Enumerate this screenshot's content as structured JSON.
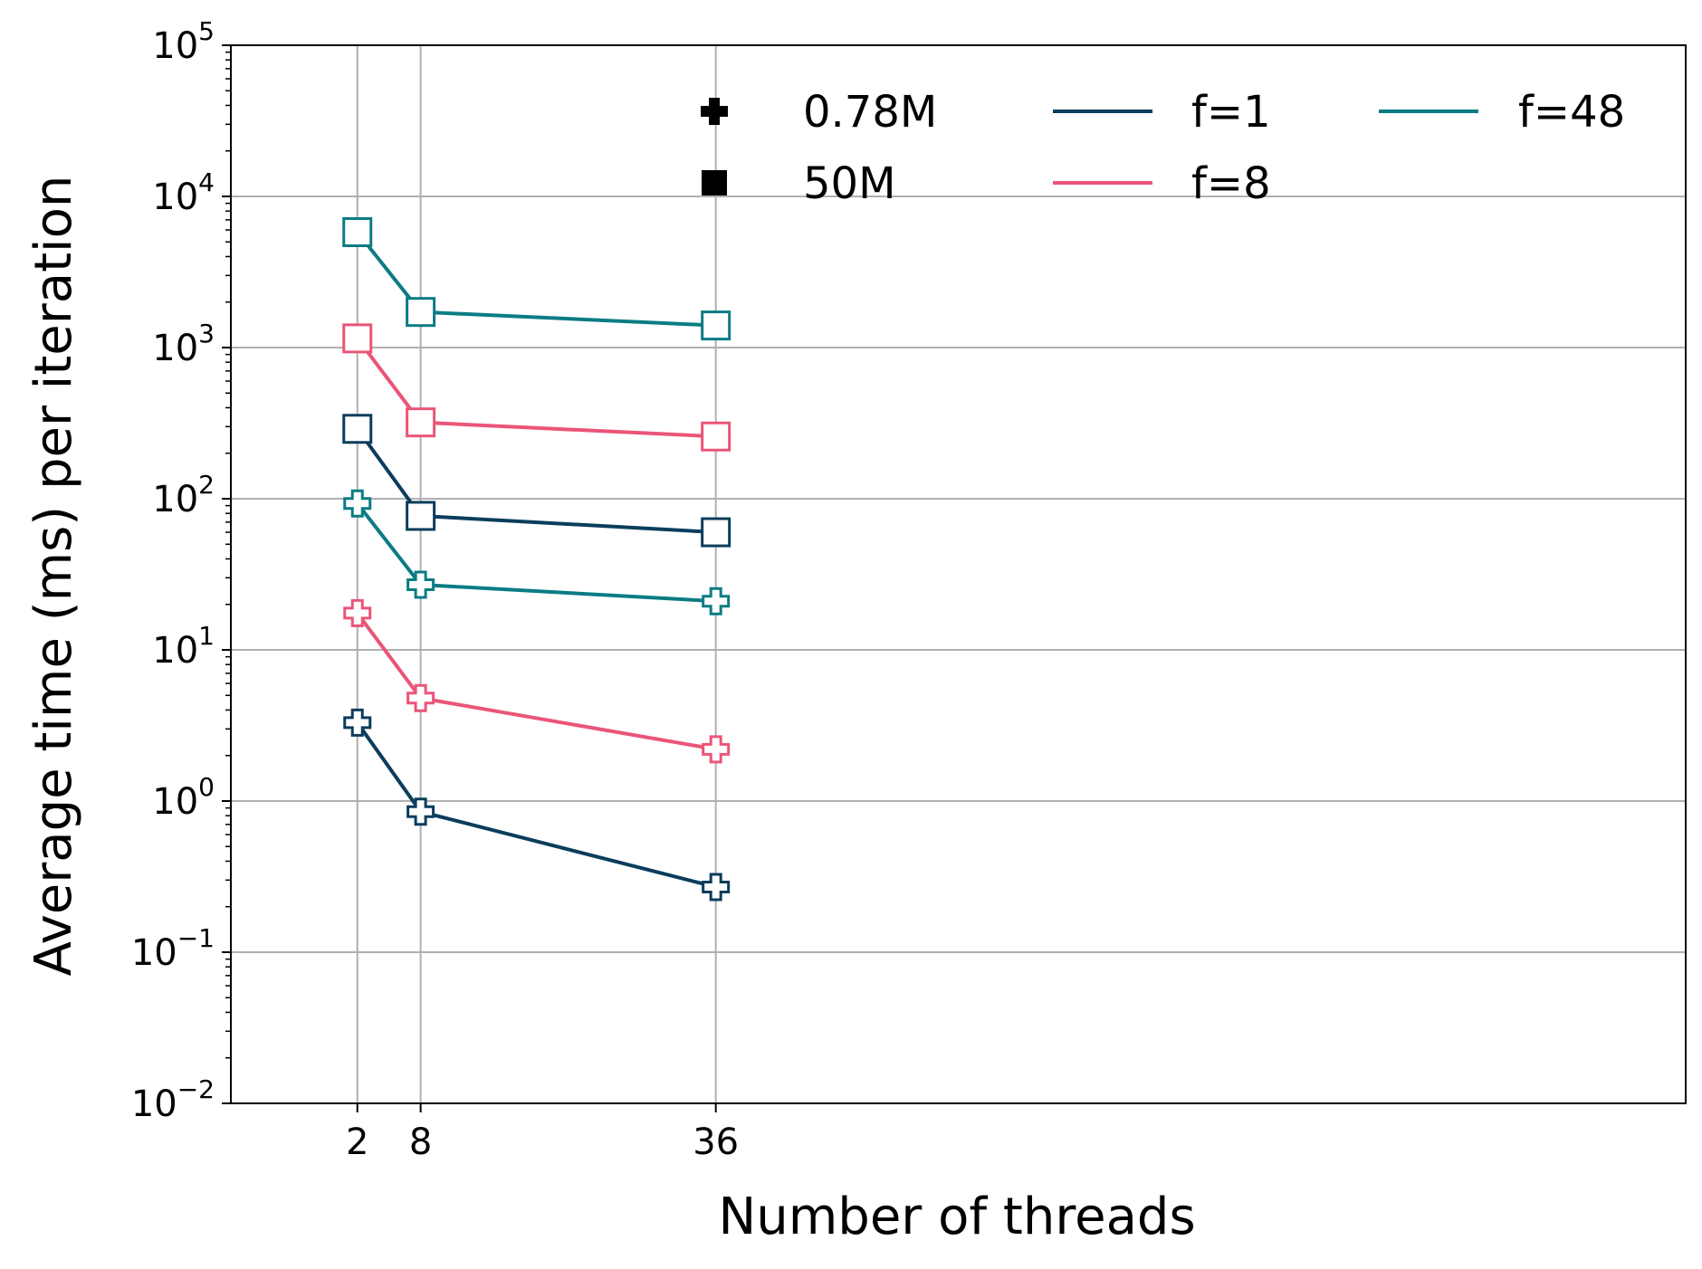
{
  "chart_data": {
    "type": "line",
    "xlabel": "Number of threads",
    "ylabel": "Average time (ms) per iteration",
    "y_scale": "log",
    "ylim": [
      0.01,
      100000
    ],
    "x_ticks": [
      2,
      8,
      36
    ],
    "y_ticks": [
      {
        "value": 0.01,
        "base": "10",
        "exp": "−2"
      },
      {
        "value": 0.1,
        "base": "10",
        "exp": "−1"
      },
      {
        "value": 1,
        "base": "10",
        "exp": "0"
      },
      {
        "value": 10,
        "base": "10",
        "exp": "1"
      },
      {
        "value": 100,
        "base": "10",
        "exp": "2"
      },
      {
        "value": 1000,
        "base": "10",
        "exp": "3"
      },
      {
        "value": 10000,
        "base": "10",
        "exp": "4"
      },
      {
        "value": 100000,
        "base": "10",
        "exp": "5"
      }
    ],
    "grid": true,
    "legend_position": "top",
    "marker_legend": [
      {
        "label": "0.78M",
        "marker": "plus"
      },
      {
        "label": "50M",
        "marker": "square"
      }
    ],
    "color_legend": [
      {
        "label": "f=1",
        "color": "#0b3d5c"
      },
      {
        "label": "f=8",
        "color": "#ea5577"
      },
      {
        "label": "f=48",
        "color": "#0b7c84"
      }
    ],
    "x": [
      2,
      8,
      36
    ],
    "series": [
      {
        "f": "f=1",
        "dataset": "0.78M",
        "marker": "plus",
        "color": "#0b3d5c",
        "values": [
          3.3,
          0.85,
          0.27
        ]
      },
      {
        "f": "f=8",
        "dataset": "0.78M",
        "marker": "plus",
        "color": "#ea5577",
        "values": [
          17.5,
          4.8,
          2.2
        ]
      },
      {
        "f": "f=48",
        "dataset": "0.78M",
        "marker": "plus",
        "color": "#0b7c84",
        "values": [
          93,
          27,
          21
        ]
      },
      {
        "f": "f=1",
        "dataset": "50M",
        "marker": "square",
        "color": "#0b3d5c",
        "values": [
          290,
          77,
          60
        ]
      },
      {
        "f": "f=8",
        "dataset": "50M",
        "marker": "square",
        "color": "#ea5577",
        "values": [
          1150,
          320,
          258
        ]
      },
      {
        "f": "f=48",
        "dataset": "50M",
        "marker": "square",
        "color": "#0b7c84",
        "values": [
          5800,
          1720,
          1400
        ]
      }
    ]
  }
}
